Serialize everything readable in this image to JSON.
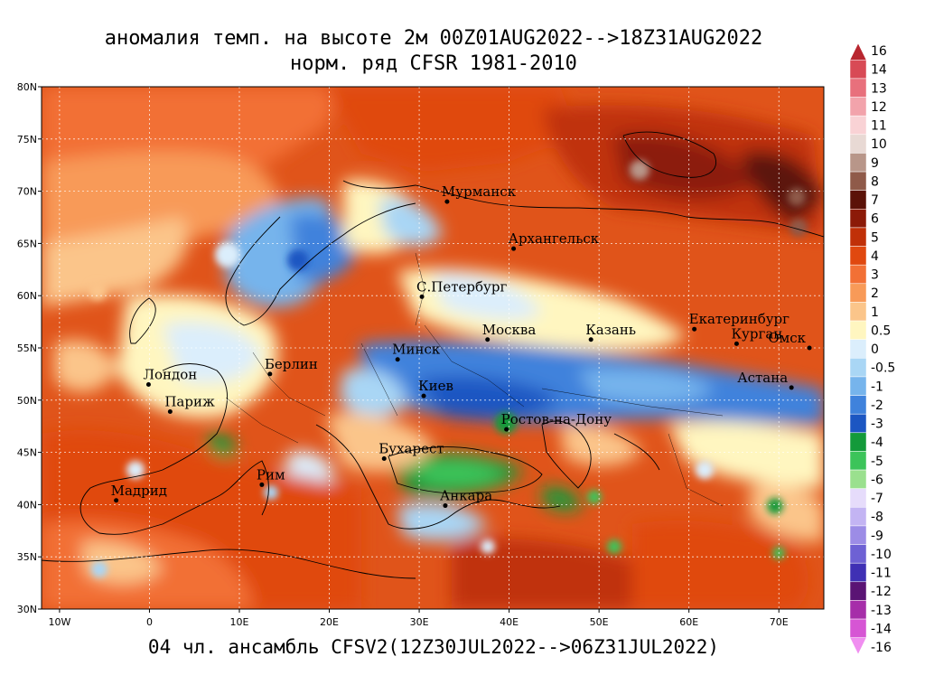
{
  "title": {
    "line1": "аномалия темп. на высоте 2м 00Z01AUG2022-->18Z31AUG2022",
    "line2": "норм. ряд CFSR 1981-2010"
  },
  "footer": "04 чл. ансамбль CFSV2(12Z30JUL2022-->06Z31JUL2022)",
  "map": {
    "lon_range": [
      -12,
      75
    ],
    "lat_range": [
      30,
      80
    ],
    "lon_ticks": [
      {
        "value": -10,
        "label": "10W"
      },
      {
        "value": 0,
        "label": "0"
      },
      {
        "value": 10,
        "label": "10E"
      },
      {
        "value": 20,
        "label": "20E"
      },
      {
        "value": 30,
        "label": "30E"
      },
      {
        "value": 40,
        "label": "40E"
      },
      {
        "value": 50,
        "label": "50E"
      },
      {
        "value": 60,
        "label": "60E"
      },
      {
        "value": 70,
        "label": "70E"
      }
    ],
    "lat_ticks": [
      {
        "value": 30,
        "label": "30N"
      },
      {
        "value": 35,
        "label": "35N"
      },
      {
        "value": 40,
        "label": "40N"
      },
      {
        "value": 45,
        "label": "45N"
      },
      {
        "value": 50,
        "label": "50N"
      },
      {
        "value": 55,
        "label": "55N"
      },
      {
        "value": 60,
        "label": "60N"
      },
      {
        "value": 65,
        "label": "65N"
      },
      {
        "value": 70,
        "label": "70N"
      },
      {
        "value": 75,
        "label": "75N"
      },
      {
        "value": 80,
        "label": "80N"
      }
    ],
    "cities": [
      {
        "name": "Мурманск",
        "lon": 33.1,
        "lat": 69.0
      },
      {
        "name": "Архангельск",
        "lon": 40.5,
        "lat": 64.5
      },
      {
        "name": "С.Петербург",
        "lon": 30.3,
        "lat": 59.9
      },
      {
        "name": "Москва",
        "lon": 37.6,
        "lat": 55.8
      },
      {
        "name": "Казань",
        "lon": 49.1,
        "lat": 55.8
      },
      {
        "name": "Екатеринбург",
        "lon": 60.6,
        "lat": 56.8
      },
      {
        "name": "Курган",
        "lon": 65.3,
        "lat": 55.4
      },
      {
        "name": "Омск",
        "lon": 73.4,
        "lat": 55.0
      },
      {
        "name": "Астана",
        "lon": 71.4,
        "lat": 51.2
      },
      {
        "name": "Минск",
        "lon": 27.6,
        "lat": 53.9
      },
      {
        "name": "Берлин",
        "lon": 13.4,
        "lat": 52.5
      },
      {
        "name": "Лондон",
        "lon": -0.1,
        "lat": 51.5
      },
      {
        "name": "Париж",
        "lon": 2.3,
        "lat": 48.9
      },
      {
        "name": "Киев",
        "lon": 30.5,
        "lat": 50.4
      },
      {
        "name": "Ростов-на-Дону",
        "lon": 39.7,
        "lat": 47.2
      },
      {
        "name": "Бухарест",
        "lon": 26.1,
        "lat": 44.4
      },
      {
        "name": "Рим",
        "lon": 12.5,
        "lat": 41.9
      },
      {
        "name": "Мадрид",
        "lon": -3.7,
        "lat": 40.4
      },
      {
        "name": "Анкара",
        "lon": 32.9,
        "lat": 39.9
      }
    ]
  },
  "legend": {
    "labels": [
      "16",
      "14",
      "13",
      "12",
      "11",
      "10",
      "9",
      "8",
      "7",
      "6",
      "5",
      "4",
      "3",
      "2",
      "1",
      "0.5",
      "0",
      "-0.5",
      "-1",
      "-2",
      "-3",
      "-4",
      "-5",
      "-6",
      "-7",
      "-8",
      "-9",
      "-10",
      "-11",
      "-12",
      "-13",
      "-14",
      "-16"
    ],
    "colors": [
      "#b8262f",
      "#d84a55",
      "#e8707c",
      "#f2a3ab",
      "#f9d2d5",
      "#e8d9d4",
      "#b89689",
      "#8f5a49",
      "#5b1208",
      "#8c1a08",
      "#c03008",
      "#e0480f",
      "#f27035",
      "#f89a58",
      "#fbc58a",
      "#fff6c0",
      "#dbeefc",
      "#a9d6f5",
      "#76b4ec",
      "#3f82dc",
      "#1c56c2",
      "#139a3a",
      "#3cc45a",
      "#9ae08e",
      "#e6dcfb",
      "#c3b4f3",
      "#9c8ce6",
      "#6e61d4",
      "#3f30b4",
      "#5a1474",
      "#a62ea9",
      "#d655d4",
      "#f08ef0"
    ]
  }
}
